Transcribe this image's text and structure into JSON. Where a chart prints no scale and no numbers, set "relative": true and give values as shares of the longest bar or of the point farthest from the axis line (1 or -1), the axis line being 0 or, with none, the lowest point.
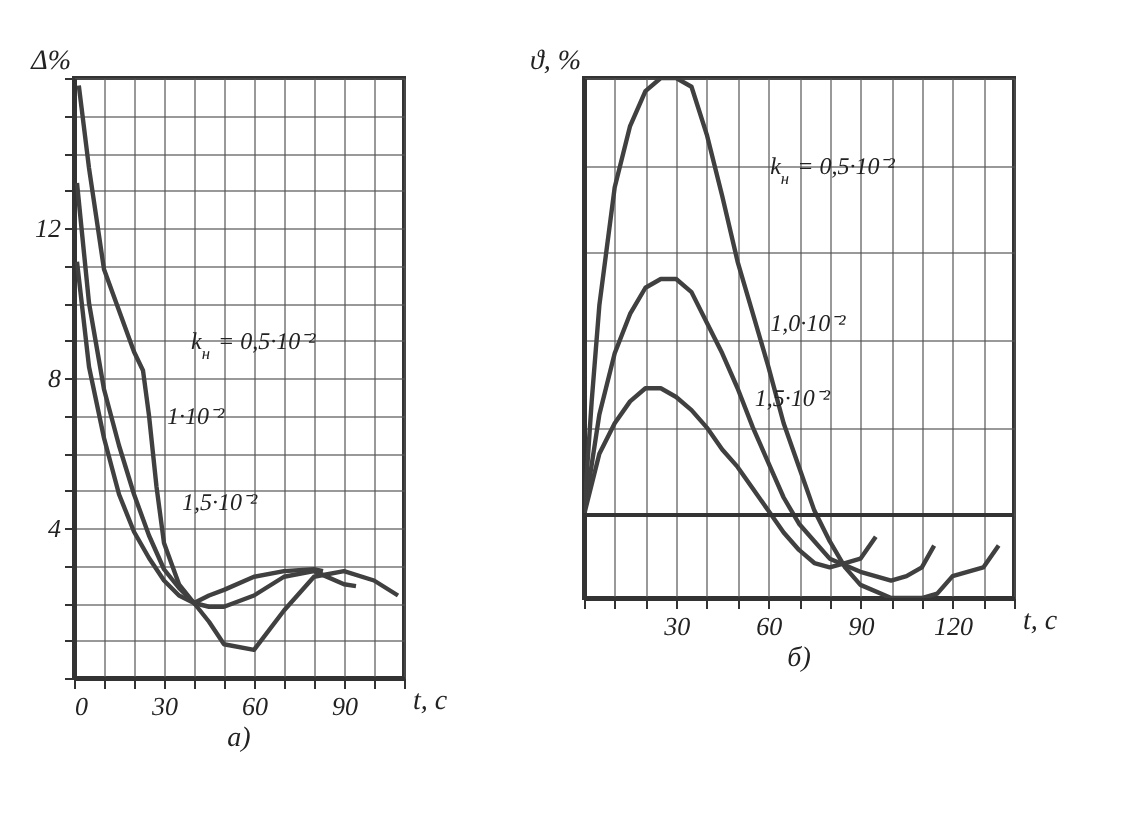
{
  "chart_data": [
    {
      "type": "line",
      "ylabel": "Δ%",
      "xlabel": "t, c",
      "xlim": [
        0,
        110
      ],
      "xticks": [
        0,
        {
          "value": 10,
          "label": null
        },
        {
          "value": 20,
          "label": null
        },
        30,
        {
          "value": 40,
          "label": null
        },
        {
          "value": 50,
          "label": null
        },
        60,
        {
          "value": 70,
          "label": null
        },
        {
          "value": 80,
          "label": null
        },
        90,
        {
          "value": 100,
          "label": null
        },
        {
          "value": 110,
          "label": null
        }
      ],
      "ylim": [
        0,
        16
      ],
      "yticks": [
        {
          "value": 0,
          "label": null
        },
        {
          "value": 1,
          "label": null
        },
        {
          "value": 2,
          "label": null
        },
        {
          "value": 3,
          "label": null
        },
        4,
        {
          "value": 5,
          "label": null
        },
        {
          "value": 6,
          "label": null
        },
        {
          "value": 7,
          "label": null
        },
        8,
        {
          "value": 9,
          "label": null
        },
        {
          "value": 10,
          "label": null
        },
        {
          "value": 11,
          "label": null
        },
        12,
        {
          "value": 13,
          "label": null
        },
        {
          "value": 14,
          "label": null
        },
        {
          "value": 15,
          "label": null
        },
        {
          "value": 16,
          "label": null
        }
      ],
      "grid": true,
      "marker": "none",
      "line_style": "solid",
      "series": [
        {
          "color": "#404040",
          "x": [
            1.6,
            5,
            10,
            15,
            20,
            23,
            25,
            27.5,
            30,
            35,
            40,
            45,
            50,
            60,
            70,
            80,
            90,
            100,
            108
          ],
          "values": [
            15.8,
            13.6,
            10.9,
            9.8,
            8.7,
            8.2,
            7.0,
            5.1,
            3.6,
            2.5,
            2.0,
            1.5,
            0.9,
            0.75,
            1.8,
            2.7,
            2.85,
            2.6,
            2.2
          ]
        },
        {
          "color": "#404040",
          "x": [
            1,
            5,
            10,
            15,
            20,
            25,
            30,
            35,
            40,
            45,
            50,
            60,
            70,
            80,
            90,
            94
          ],
          "values": [
            13.2,
            10.0,
            7.7,
            6.2,
            4.9,
            3.8,
            2.9,
            2.4,
            2.0,
            1.9,
            1.9,
            2.2,
            2.7,
            2.85,
            2.5,
            2.45
          ]
        },
        {
          "color": "#404040",
          "x": [
            1,
            5,
            10,
            15,
            20,
            25,
            30,
            35,
            40,
            45,
            50,
            60,
            70,
            80,
            83
          ],
          "values": [
            11.1,
            8.3,
            6.4,
            4.9,
            3.9,
            3.2,
            2.6,
            2.2,
            2.0,
            2.2,
            2.35,
            2.7,
            2.85,
            2.9,
            2.85
          ]
        }
      ],
      "annotations": [
        {
          "text": "k$_{н}$ = 0,5·10⁻²",
          "x": 23,
          "y": 8.2
        },
        {
          "text": "1·10⁻²",
          "x": 15,
          "y": 6.2
        },
        {
          "text": "1,5·10⁻²",
          "x": 20,
          "y": 3.9
        },
        "а)"
      ]
    },
    {
      "type": "line",
      "ylabel": "ϑ, %",
      "xlabel": "t, c",
      "relative": true,
      "xlim": [
        0,
        140
      ],
      "xticks": [
        {
          "value": 0,
          "label": null
        },
        {
          "value": 10,
          "label": null
        },
        {
          "value": 20,
          "label": null
        },
        30,
        {
          "value": 40,
          "label": null
        },
        {
          "value": 50,
          "label": null
        },
        60,
        {
          "value": 70,
          "label": null
        },
        {
          "value": 80,
          "label": null
        },
        90,
        {
          "value": 100,
          "label": null
        },
        {
          "value": 110,
          "label": null
        },
        120,
        {
          "value": 130,
          "label": null
        },
        {
          "value": 140,
          "label": null
        }
      ],
      "grid": true,
      "marker": "none",
      "line_style": "solid",
      "series": [
        {
          "color": "#404040",
          "x": [
            0,
            2.5,
            5,
            10,
            15,
            20,
            25,
            30,
            35,
            40,
            45,
            50,
            55,
            60,
            65,
            70,
            75,
            80,
            85,
            90,
            100,
            110,
            115,
            120,
            130,
            135
          ],
          "values": [
            0,
            0.26,
            0.48,
            0.75,
            0.89,
            0.97,
            1,
            1,
            0.98,
            0.87,
            0.73,
            0.58,
            0.46,
            0.34,
            0.21,
            0.11,
            0.01,
            -0.06,
            -0.12,
            -0.16,
            -0.19,
            -0.19,
            -0.18,
            -0.14,
            -0.12,
            -0.07
          ]
        },
        {
          "color": "#404040",
          "x": [
            0,
            5,
            10,
            15,
            20,
            25,
            30,
            35,
            40,
            45,
            50,
            55,
            60,
            65,
            70,
            75,
            80,
            90,
            100,
            105,
            110,
            114
          ],
          "values": [
            0,
            0.23,
            0.37,
            0.46,
            0.52,
            0.54,
            0.54,
            0.51,
            0.44,
            0.37,
            0.29,
            0.2,
            0.12,
            0.04,
            -0.02,
            -0.06,
            -0.1,
            -0.13,
            -0.15,
            -0.14,
            -0.12,
            -0.07
          ]
        },
        {
          "color": "#404040",
          "x": [
            0,
            5,
            10,
            15,
            20,
            25,
            30,
            35,
            40,
            45,
            50,
            55,
            60,
            65,
            70,
            75,
            80,
            85,
            90,
            95
          ],
          "values": [
            0,
            0.14,
            0.21,
            0.26,
            0.29,
            0.29,
            0.27,
            0.24,
            0.2,
            0.15,
            0.11,
            0.06,
            0.01,
            -0.04,
            -0.08,
            -0.11,
            -0.12,
            -0.11,
            -0.1,
            -0.05
          ]
        }
      ],
      "annotations": [
        {
          "text": "k$_{н}$ = 0,5·10⁻²",
          "x": 45,
          "y": 0.73
        },
        {
          "text": "1,0·10⁻²",
          "x": 45,
          "y": 0.37
        },
        {
          "text": "1,5·10⁻²",
          "x": 40,
          "y": 0.2
        },
        "б)"
      ]
    }
  ]
}
